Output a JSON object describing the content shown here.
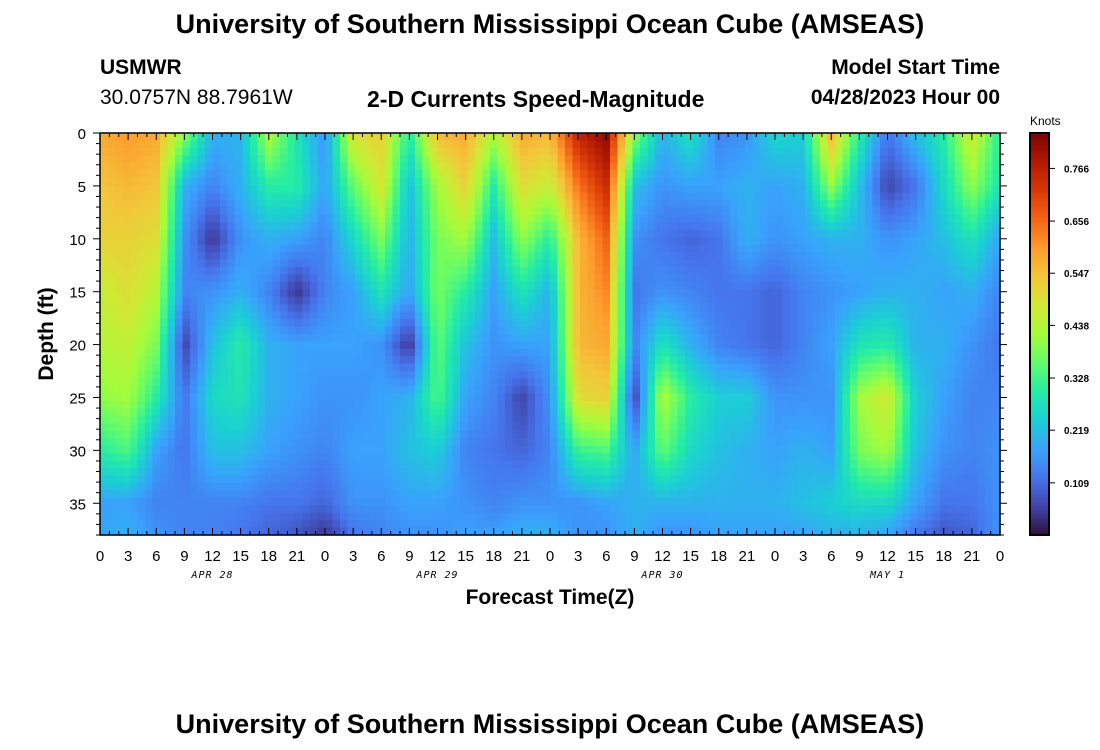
{
  "page": {
    "title": "University of Southern Mississippi Ocean Cube (AMSEAS)",
    "title_repeat": "University of Southern Mississippi Ocean Cube (AMSEAS)",
    "station_name": "USMWR",
    "station_coords": "30.0757N  88.7961W",
    "subtitle": "2-D Currents Speed-Magnitude",
    "model_start_label": "Model Start Time",
    "model_start_value": "04/28/2023 Hour 00"
  },
  "chart_data": {
    "type": "heatmap",
    "title": "2-D Currents Speed-Magnitude",
    "xlabel": "Forecast Time(Z)",
    "ylabel": "Depth (ft)",
    "xlim": [
      0,
      96
    ],
    "ylim": [
      38,
      0
    ],
    "x_ticks": [
      0,
      3,
      6,
      9,
      12,
      15,
      18,
      21,
      24,
      27,
      30,
      33,
      36,
      39,
      42,
      45,
      48,
      51,
      54,
      57,
      60,
      63,
      66,
      69,
      72,
      75,
      78,
      81,
      84,
      87,
      90,
      93,
      96
    ],
    "x_tick_labels": [
      "0",
      "3",
      "6",
      "9",
      "12",
      "15",
      "18",
      "21",
      "0",
      "3",
      "6",
      "9",
      "12",
      "15",
      "18",
      "21",
      "0",
      "3",
      "6",
      "9",
      "12",
      "15",
      "18",
      "21",
      "0",
      "3",
      "6",
      "9",
      "12",
      "15",
      "18",
      "21",
      "0"
    ],
    "y_ticks": [
      0,
      5,
      10,
      15,
      20,
      25,
      30,
      35
    ],
    "y_tick_labels": [
      "0",
      "5",
      "10",
      "15",
      "20",
      "25",
      "30",
      "35"
    ],
    "day_labels": [
      {
        "label": "APR 28",
        "hour": 12
      },
      {
        "label": "APR 29",
        "hour": 36
      },
      {
        "label": "APR 30",
        "hour": 60
      },
      {
        "label": "MAY 1",
        "hour": 84
      }
    ],
    "colorbar": {
      "unit": "Knots",
      "min": 0,
      "max": 0.84,
      "ticks": [
        0.109,
        0.219,
        0.328,
        0.438,
        0.547,
        0.656,
        0.766
      ],
      "tick_labels": [
        "0.109",
        "0.219",
        "0.328",
        "0.438",
        "0.547",
        "0.656",
        "0.766"
      ],
      "colors": [
        "#30123b",
        "#4145ab",
        "#4675ed",
        "#39a2fc",
        "#1bcfd4",
        "#24eca6",
        "#61fc6c",
        "#a4fc3b",
        "#d1e834",
        "#f3c63a",
        "#fe9b2d",
        "#f36315",
        "#d93806",
        "#b11901",
        "#7a0403"
      ]
    },
    "field": {
      "description": "current speed (knots) estimated from the image, sampled every 3 hours (rows) at depths 0,5,10,15,20,25,30,35,38 ft (columns)",
      "hours": [
        0,
        3,
        6,
        9,
        12,
        15,
        18,
        21,
        24,
        27,
        30,
        33,
        36,
        39,
        42,
        45,
        48,
        51,
        54,
        57,
        60,
        63,
        66,
        69,
        72,
        75,
        78,
        81,
        84,
        87,
        90,
        93,
        96
      ],
      "depths": [
        0,
        5,
        10,
        15,
        20,
        25,
        30,
        35,
        38
      ],
      "values": [
        [
          0.58,
          0.54,
          0.52,
          0.46,
          0.44,
          0.4,
          0.3,
          0.18,
          0.18
        ],
        [
          0.6,
          0.56,
          0.52,
          0.5,
          0.46,
          0.42,
          0.34,
          0.18,
          0.2
        ],
        [
          0.58,
          0.54,
          0.5,
          0.44,
          0.38,
          0.3,
          0.18,
          0.14,
          0.16
        ],
        [
          0.4,
          0.2,
          0.16,
          0.14,
          0.06,
          0.12,
          0.12,
          0.14,
          0.14
        ],
        [
          0.2,
          0.14,
          0.04,
          0.16,
          0.22,
          0.26,
          0.22,
          0.14,
          0.14
        ],
        [
          0.2,
          0.2,
          0.16,
          0.2,
          0.3,
          0.28,
          0.22,
          0.14,
          0.12
        ],
        [
          0.44,
          0.3,
          0.2,
          0.14,
          0.2,
          0.2,
          0.18,
          0.12,
          0.1
        ],
        [
          0.28,
          0.3,
          0.18,
          0.04,
          0.18,
          0.18,
          0.16,
          0.12,
          0.08
        ],
        [
          0.16,
          0.18,
          0.14,
          0.14,
          0.18,
          0.16,
          0.14,
          0.1,
          0.04
        ],
        [
          0.5,
          0.36,
          0.26,
          0.18,
          0.18,
          0.16,
          0.18,
          0.16,
          0.12
        ],
        [
          0.52,
          0.48,
          0.38,
          0.28,
          0.16,
          0.18,
          0.18,
          0.16,
          0.14
        ],
        [
          0.3,
          0.22,
          0.2,
          0.18,
          0.04,
          0.2,
          0.22,
          0.18,
          0.16
        ],
        [
          0.56,
          0.42,
          0.38,
          0.38,
          0.36,
          0.34,
          0.24,
          0.18,
          0.16
        ],
        [
          0.58,
          0.52,
          0.42,
          0.3,
          0.22,
          0.18,
          0.14,
          0.16,
          0.18
        ],
        [
          0.44,
          0.3,
          0.22,
          0.18,
          0.16,
          0.14,
          0.12,
          0.14,
          0.18
        ],
        [
          0.58,
          0.5,
          0.4,
          0.28,
          0.18,
          0.06,
          0.1,
          0.16,
          0.2
        ],
        [
          0.56,
          0.46,
          0.3,
          0.2,
          0.18,
          0.16,
          0.14,
          0.16,
          0.2
        ],
        [
          0.76,
          0.64,
          0.56,
          0.56,
          0.56,
          0.5,
          0.32,
          0.16,
          0.16
        ],
        [
          0.82,
          0.74,
          0.66,
          0.62,
          0.58,
          0.52,
          0.34,
          0.18,
          0.16
        ],
        [
          0.4,
          0.22,
          0.16,
          0.12,
          0.14,
          0.06,
          0.18,
          0.2,
          0.2
        ],
        [
          0.2,
          0.16,
          0.12,
          0.16,
          0.28,
          0.44,
          0.36,
          0.2,
          0.16
        ],
        [
          0.28,
          0.18,
          0.1,
          0.14,
          0.2,
          0.3,
          0.26,
          0.2,
          0.16
        ],
        [
          0.14,
          0.18,
          0.12,
          0.12,
          0.14,
          0.24,
          0.22,
          0.2,
          0.18
        ],
        [
          0.16,
          0.2,
          0.2,
          0.12,
          0.12,
          0.24,
          0.2,
          0.2,
          0.18
        ],
        [
          0.26,
          0.18,
          0.16,
          0.1,
          0.1,
          0.16,
          0.18,
          0.2,
          0.18
        ],
        [
          0.24,
          0.2,
          0.18,
          0.14,
          0.14,
          0.16,
          0.2,
          0.22,
          0.18
        ],
        [
          0.56,
          0.4,
          0.2,
          0.16,
          0.18,
          0.16,
          0.18,
          0.24,
          0.2
        ],
        [
          0.3,
          0.22,
          0.2,
          0.18,
          0.28,
          0.42,
          0.38,
          0.26,
          0.2
        ],
        [
          0.12,
          0.06,
          0.16,
          0.2,
          0.3,
          0.48,
          0.42,
          0.26,
          0.18
        ],
        [
          0.22,
          0.12,
          0.18,
          0.2,
          0.2,
          0.24,
          0.22,
          0.18,
          0.12
        ],
        [
          0.3,
          0.26,
          0.22,
          0.18,
          0.2,
          0.18,
          0.16,
          0.12,
          0.08
        ],
        [
          0.48,
          0.4,
          0.28,
          0.2,
          0.16,
          0.14,
          0.14,
          0.12,
          0.1
        ],
        [
          0.3,
          0.28,
          0.18,
          0.14,
          0.12,
          0.14,
          0.16,
          0.16,
          0.16
        ]
      ]
    }
  }
}
